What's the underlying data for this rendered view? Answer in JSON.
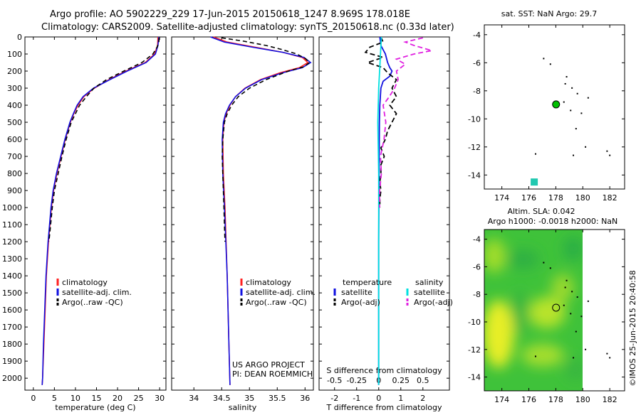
{
  "header": {
    "line1": "Argo profile: AO 5902229_229 17-Jun-2015 20150618_1247 8.969S 178.018E",
    "line2": "Climatology: CARS2009. Satellite-adjusted climatology: synTS_20150618.nc (0.33d later)"
  },
  "colors": {
    "climatology": "#ff2020",
    "satellite": "#1010e0",
    "argo": "#000000",
    "t_satellite": "#1010e0",
    "s_satellite": "#00e0e0",
    "s_argo": "#e020e0",
    "map_point": "#00c000",
    "sst_marker": "#20c8b0"
  },
  "depth_axis": {
    "ticks": [
      0,
      100,
      200,
      300,
      400,
      500,
      600,
      700,
      800,
      900,
      1000,
      1100,
      1200,
      1300,
      1400,
      1500,
      1600,
      1700,
      1800,
      1900,
      2000
    ],
    "ylim": [
      0,
      2070
    ]
  },
  "chart_data": [
    {
      "type": "line",
      "name": "temperature-profile",
      "xlabel": "temperature (deg C)",
      "xlim": [
        -2,
        31.5
      ],
      "xticks": [
        0,
        5,
        10,
        15,
        20,
        25,
        30
      ],
      "legend": [
        "climatology",
        "satellite-adj. clim.",
        "Argo(..raw -QC)"
      ],
      "series": [
        {
          "name": "climatology",
          "depth": [
            0,
            50,
            100,
            150,
            200,
            250,
            300,
            350,
            400,
            450,
            500,
            600,
            700,
            800,
            900,
            1000,
            1200,
            1400,
            1600,
            1800,
            2000,
            2040
          ],
          "values": [
            29.6,
            29.5,
            28.8,
            26.6,
            22.0,
            18.0,
            14.5,
            12.0,
            10.6,
            9.6,
            8.8,
            7.6,
            6.6,
            5.6,
            4.8,
            4.3,
            3.6,
            3.1,
            2.8,
            2.5,
            2.2,
            2.1
          ]
        },
        {
          "name": "satellite-adj. clim.",
          "depth": [
            0,
            50,
            100,
            150,
            200,
            250,
            300,
            350,
            400,
            450,
            500,
            600,
            700,
            800,
            900,
            1000,
            1200,
            1400,
            1600,
            1800,
            2000,
            2040
          ],
          "values": [
            29.8,
            29.6,
            29.0,
            26.8,
            22.3,
            18.2,
            14.3,
            11.8,
            10.4,
            9.5,
            8.7,
            7.5,
            6.5,
            5.5,
            4.7,
            4.2,
            3.5,
            3.0,
            2.7,
            2.4,
            2.2,
            2.1
          ]
        },
        {
          "name": "Argo(..raw -QC)",
          "depth": [
            5,
            30,
            60,
            100,
            150,
            200,
            250,
            300,
            350,
            400,
            450,
            500,
            600,
            700,
            800,
            900,
            1000,
            1100,
            1200
          ],
          "values": [
            29.9,
            29.8,
            29.4,
            28.4,
            25.8,
            21.5,
            17.4,
            14.4,
            12.6,
            11.0,
            10.0,
            9.0,
            7.8,
            6.8,
            5.9,
            5.0,
            4.5,
            4.1,
            3.7
          ]
        }
      ]
    },
    {
      "type": "line",
      "name": "salinity-profile",
      "xlabel": "salinity",
      "xlim": [
        33.6,
        36.15
      ],
      "xticks": [
        34,
        34.5,
        35,
        35.5,
        36
      ],
      "xticklabels": [
        "34",
        "34.5",
        "35",
        "35.5",
        "36"
      ],
      "legend": [
        "climatology",
        "satellite-adj. clim.",
        "Argo(..raw -QC)"
      ],
      "footer": [
        "US ARGO PROJECT",
        "PI: DEAN ROEMMICH"
      ],
      "series": [
        {
          "name": "climatology",
          "depth": [
            0,
            30,
            60,
            90,
            120,
            150,
            180,
            210,
            250,
            300,
            350,
            400,
            450,
            500,
            600,
            800,
            1000,
            1400,
            1800,
            2040
          ],
          "values": [
            34.35,
            34.6,
            35.1,
            35.6,
            35.95,
            36.05,
            35.9,
            35.55,
            35.2,
            34.92,
            34.75,
            34.65,
            34.58,
            34.54,
            34.52,
            34.53,
            34.56,
            34.6,
            34.63,
            34.65
          ]
        },
        {
          "name": "satellite-adj. clim.",
          "depth": [
            0,
            30,
            60,
            90,
            120,
            150,
            180,
            210,
            250,
            300,
            350,
            400,
            450,
            500,
            600,
            800,
            1000,
            1400,
            1800,
            2040
          ],
          "values": [
            34.3,
            34.55,
            35.05,
            35.6,
            35.98,
            36.1,
            35.95,
            35.6,
            35.22,
            34.93,
            34.75,
            34.64,
            34.57,
            34.53,
            34.51,
            34.52,
            34.55,
            34.6,
            34.63,
            34.65
          ]
        },
        {
          "name": "Argo(..raw -QC)",
          "depth": [
            5,
            25,
            50,
            75,
            100,
            125,
            150,
            175,
            200,
            250,
            300,
            350,
            400,
            450,
            500,
            600,
            700,
            800,
            900,
            1000,
            1100,
            1200
          ],
          "values": [
            34.5,
            34.9,
            35.3,
            35.6,
            35.85,
            36.0,
            36.08,
            35.98,
            35.7,
            35.3,
            35.0,
            34.8,
            34.68,
            34.6,
            34.55,
            34.52,
            34.51,
            34.52,
            34.53,
            34.54,
            34.55,
            34.56
          ]
        }
      ]
    },
    {
      "type": "line",
      "name": "difference-profile",
      "xlabel": "T difference from climatology",
      "top_label": "S difference from climatology",
      "xlim": [
        -2.7,
        3.2
      ],
      "xticks": [
        -2,
        -1,
        0,
        1,
        2
      ],
      "s_ticks": [
        -0.5,
        -0.25,
        0,
        0.25,
        0.5
      ],
      "s_ticklabels": [
        "-0.5",
        "-0.25",
        "0",
        "0.25",
        "0.5"
      ],
      "legend": {
        "temperature_header": "temperature",
        "salinity_header": "salinity",
        "items": [
          "satellite",
          "Argo(-adj)",
          "satellite",
          "Argo(-adj)"
        ]
      },
      "series": [
        {
          "name": "temperature satellite",
          "depth": [
            0,
            50,
            100,
            150,
            180,
            200,
            230,
            260,
            300,
            400,
            500,
            700,
            900,
            1200,
            1500,
            1800,
            2040
          ],
          "values": [
            0.05,
            0.1,
            0.3,
            0.4,
            0.5,
            0.6,
            0.5,
            0.2,
            0.1,
            0.05,
            0.03,
            0.02,
            0.01,
            0.0,
            0.0,
            0.0,
            0.0
          ]
        },
        {
          "name": "temperature Argo(-adj)",
          "depth": [
            0,
            30,
            60,
            90,
            120,
            150,
            180,
            210,
            250,
            300,
            350,
            400,
            450,
            500,
            550,
            600,
            650,
            700,
            750,
            800,
            850,
            900,
            950,
            1000
          ],
          "values": [
            0.1,
            0.2,
            -0.4,
            -0.6,
            0.2,
            -0.5,
            0.2,
            0.4,
            0.8,
            0.6,
            0.8,
            0.5,
            0.8,
            0.6,
            0.4,
            0.3,
            0.1,
            0.25,
            0.1,
            0.1,
            0.05,
            0.1,
            0.05,
            0.05
          ]
        },
        {
          "name": "salinity satellite",
          "depth": [
            0,
            100,
            200,
            300,
            500,
            800,
            1200,
            1600,
            2040
          ],
          "values": [
            0.03,
            0.02,
            0.01,
            0.0,
            -0.01,
            0.0,
            0.0,
            0.0,
            0.0
          ]
        },
        {
          "name": "salinity Argo(-adj)",
          "depth": [
            5,
            30,
            50,
            80,
            100,
            130,
            160,
            200,
            250,
            300,
            350,
            400,
            500,
            600,
            700,
            800,
            900,
            1000
          ],
          "values": [
            0.5,
            0.3,
            0.4,
            0.6,
            0.4,
            0.2,
            0.3,
            0.2,
            0.22,
            0.18,
            0.12,
            0.05,
            0.08,
            0.06,
            0.02,
            0.03,
            0.01,
            0.01
          ]
        }
      ]
    },
    {
      "type": "scatter",
      "name": "sst-map",
      "title": "sat. SST: NaN Argo: 29.7",
      "xlim": [
        172.7,
        183.1
      ],
      "ylim": [
        -15,
        -3.3
      ],
      "xticks": [
        174,
        176,
        178,
        180,
        182
      ],
      "yticks": [
        -4,
        -6,
        -8,
        -10,
        -12,
        -14
      ],
      "argo_position": {
        "lon": 178.018,
        "lat": -8.969
      },
      "sst_marker": {
        "lon": 176.4,
        "lat": -14.5
      },
      "land": [
        [
          177.1,
          -5.7
        ],
        [
          177.6,
          -6.1
        ],
        [
          178.8,
          -7.0
        ],
        [
          178.7,
          -7.5
        ],
        [
          179.2,
          -7.8
        ],
        [
          179.6,
          -8.2
        ],
        [
          180.4,
          -8.5
        ],
        [
          179.1,
          -9.4
        ],
        [
          178.6,
          -8.8
        ],
        [
          179.9,
          -9.6
        ],
        [
          179.5,
          -10.7
        ],
        [
          180.2,
          -12.0
        ],
        [
          181.8,
          -12.3
        ],
        [
          182.0,
          -12.6
        ],
        [
          179.3,
          -12.6
        ],
        [
          176.5,
          -12.5
        ]
      ]
    },
    {
      "type": "heatmap",
      "name": "sla-map",
      "title": "Altim. SLA: 0.042",
      "subtitle": "Argo h1000: -0.0018 h2000: NaN",
      "xlim": [
        172.7,
        183.1
      ],
      "ylim": [
        -15,
        -3.3
      ],
      "xticks": [
        174,
        176,
        178,
        180,
        182
      ],
      "yticks": [
        -4,
        -6,
        -8,
        -10,
        -12,
        -14
      ],
      "argo_position": {
        "lon": 178.018,
        "lat": -8.969
      },
      "data_extent": {
        "lon": [
          172.7,
          180.0
        ],
        "lat": [
          -15,
          -3.3
        ]
      }
    }
  ],
  "footer": {
    "timestamp": "©IMOS 25-Jun-2015 20:40:58"
  }
}
